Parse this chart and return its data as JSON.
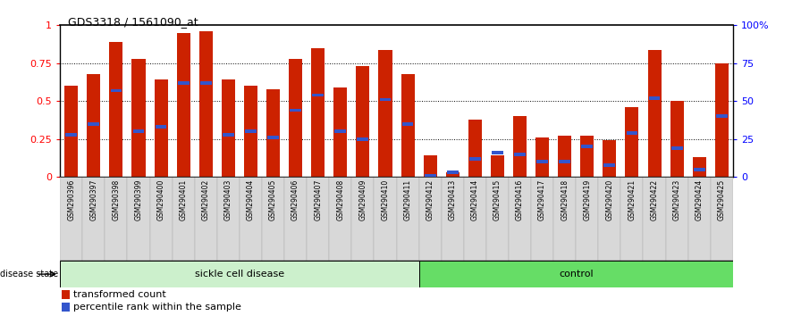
{
  "title": "GDS3318 / 1561090_at",
  "samples": [
    "GSM290396",
    "GSM290397",
    "GSM290398",
    "GSM290399",
    "GSM290400",
    "GSM290401",
    "GSM290402",
    "GSM290403",
    "GSM290404",
    "GSM290405",
    "GSM290406",
    "GSM290407",
    "GSM290408",
    "GSM290409",
    "GSM290410",
    "GSM290411",
    "GSM290412",
    "GSM290413",
    "GSM290414",
    "GSM290415",
    "GSM290416",
    "GSM290417",
    "GSM290418",
    "GSM290419",
    "GSM290420",
    "GSM290421",
    "GSM290422",
    "GSM290423",
    "GSM290424",
    "GSM290425"
  ],
  "transformed_count": [
    0.6,
    0.68,
    0.89,
    0.78,
    0.64,
    0.95,
    0.96,
    0.64,
    0.6,
    0.58,
    0.78,
    0.85,
    0.59,
    0.73,
    0.84,
    0.68,
    0.14,
    0.03,
    0.38,
    0.14,
    0.4,
    0.26,
    0.27,
    0.27,
    0.24,
    0.46,
    0.84,
    0.5,
    0.13,
    0.75
  ],
  "percentile_rank": [
    0.28,
    0.35,
    0.57,
    0.3,
    0.33,
    0.62,
    0.62,
    0.28,
    0.3,
    0.26,
    0.44,
    0.54,
    0.3,
    0.25,
    0.51,
    0.35,
    0.01,
    0.03,
    0.12,
    0.16,
    0.15,
    0.1,
    0.1,
    0.2,
    0.08,
    0.29,
    0.52,
    0.19,
    0.05,
    0.4
  ],
  "bar_color": "#cc2200",
  "dot_color": "#3355cc",
  "sickle_count": 16,
  "control_count": 14,
  "sickle_label": "sickle cell disease",
  "control_label": "control",
  "disease_state_label": "disease state",
  "legend_red": "transformed count",
  "legend_blue": "percentile rank within the sample",
  "ylim_left": [
    0,
    1.0
  ],
  "ylim_right": [
    0,
    100
  ],
  "yticks_left": [
    0,
    0.25,
    0.5,
    0.75
  ],
  "ytick_top": 1.0,
  "yticks_right": [
    0,
    25,
    50,
    75,
    100
  ],
  "sickle_bg": "#ccf0cc",
  "control_bg": "#66dd66",
  "xticklabel_bg": "#d8d8d8"
}
